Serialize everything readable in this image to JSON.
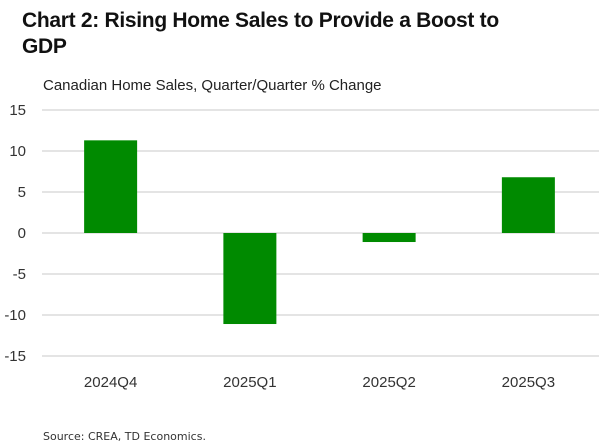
{
  "chart_data": {
    "type": "bar",
    "title": "Chart 2: Rising Home Sales to Provide a Boost to GDP",
    "subtitle": "Canadian Home Sales, Quarter/Quarter % Change",
    "xlabel": "",
    "ylabel": "",
    "categories": [
      "2024Q4",
      "2025Q1",
      "2025Q2",
      "2025Q3"
    ],
    "series": [
      {
        "name": "Canadian Home Sales, Q/Q % Change",
        "values": [
          11.3,
          -11.1,
          -1.1,
          6.8
        ],
        "color": "#008a00"
      }
    ],
    "ylim": [
      -15,
      15
    ],
    "yticks": [
      15,
      10,
      5,
      0,
      -5,
      -10,
      -15
    ],
    "grid": true,
    "legend": "none",
    "source": "Source: CREA,  TD Economics."
  }
}
